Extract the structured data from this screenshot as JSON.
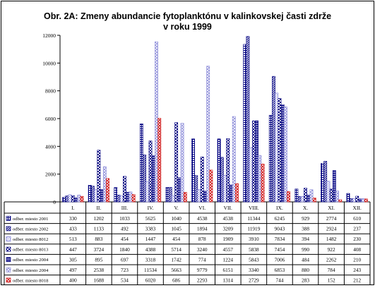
{
  "chart_data": {
    "type": "bar",
    "title_line1": "Obr. 2A:  Zmeny abundancie fytoplanktónu v kalinkovskej časti zdrže",
    "title_line2": "v roku 1999",
    "xlabel": "",
    "ylabel": "",
    "ylim": [
      0,
      12000
    ],
    "yticks": [
      0,
      2000,
      4000,
      6000,
      8000,
      10000,
      12000
    ],
    "grid": false,
    "legend": "table-below",
    "categories": [
      "I.",
      "II.",
      "III.",
      "IV.",
      "V.",
      "VI.",
      "VII.",
      "VIII.",
      "IX.",
      "X.",
      "XI.",
      "XII."
    ],
    "series": [
      {
        "name": "odber. miesto 2001",
        "color": "#000080",
        "pattern": "grid",
        "values": [
          330,
          1202,
          1033,
          5625,
          1040,
          4538,
          4538,
          11344,
          6245,
          929,
          2774,
          610
        ]
      },
      {
        "name": "odber. miesto 2002",
        "color": "#000080",
        "pattern": "diag-dense",
        "values": [
          433,
          1133,
          492,
          3383,
          1045,
          1894,
          3209,
          11919,
          9043,
          388,
          2924,
          237
        ]
      },
      {
        "name": "odber. miesto 8012",
        "color": "#6a6ad0",
        "pattern": "dots",
        "values": [
          513,
          883,
          454,
          1447,
          454,
          878,
          1909,
          3910,
          7834,
          394,
          1482,
          230
        ]
      },
      {
        "name": "odber. miesto 8013",
        "color": "#000080",
        "pattern": "checker",
        "values": [
          447,
          3724,
          1840,
          4388,
          5714,
          3240,
          4557,
          5838,
          7454,
          990,
          922,
          408
        ]
      },
      {
        "name": "odber. miesto 2004",
        "color": "#000080",
        "pattern": "horiz",
        "values": [
          305,
          895,
          697,
          3318,
          1742,
          774,
          1224,
          5843,
          7006,
          484,
          2262,
          210
        ]
      },
      {
        "name": "odber. miesto 2004",
        "color": "#8a8ad8",
        "pattern": "diamond",
        "values": [
          497,
          2538,
          723,
          11534,
          5663,
          9779,
          6151,
          3340,
          6853,
          880,
          784,
          243
        ]
      },
      {
        "name": "odber. miesto 8018",
        "color": "#d01818",
        "pattern": "diag-red",
        "values": [
          400,
          1688,
          534,
          6020,
          686,
          2293,
          1314,
          2729,
          744,
          283,
          152,
          212
        ]
      }
    ]
  }
}
